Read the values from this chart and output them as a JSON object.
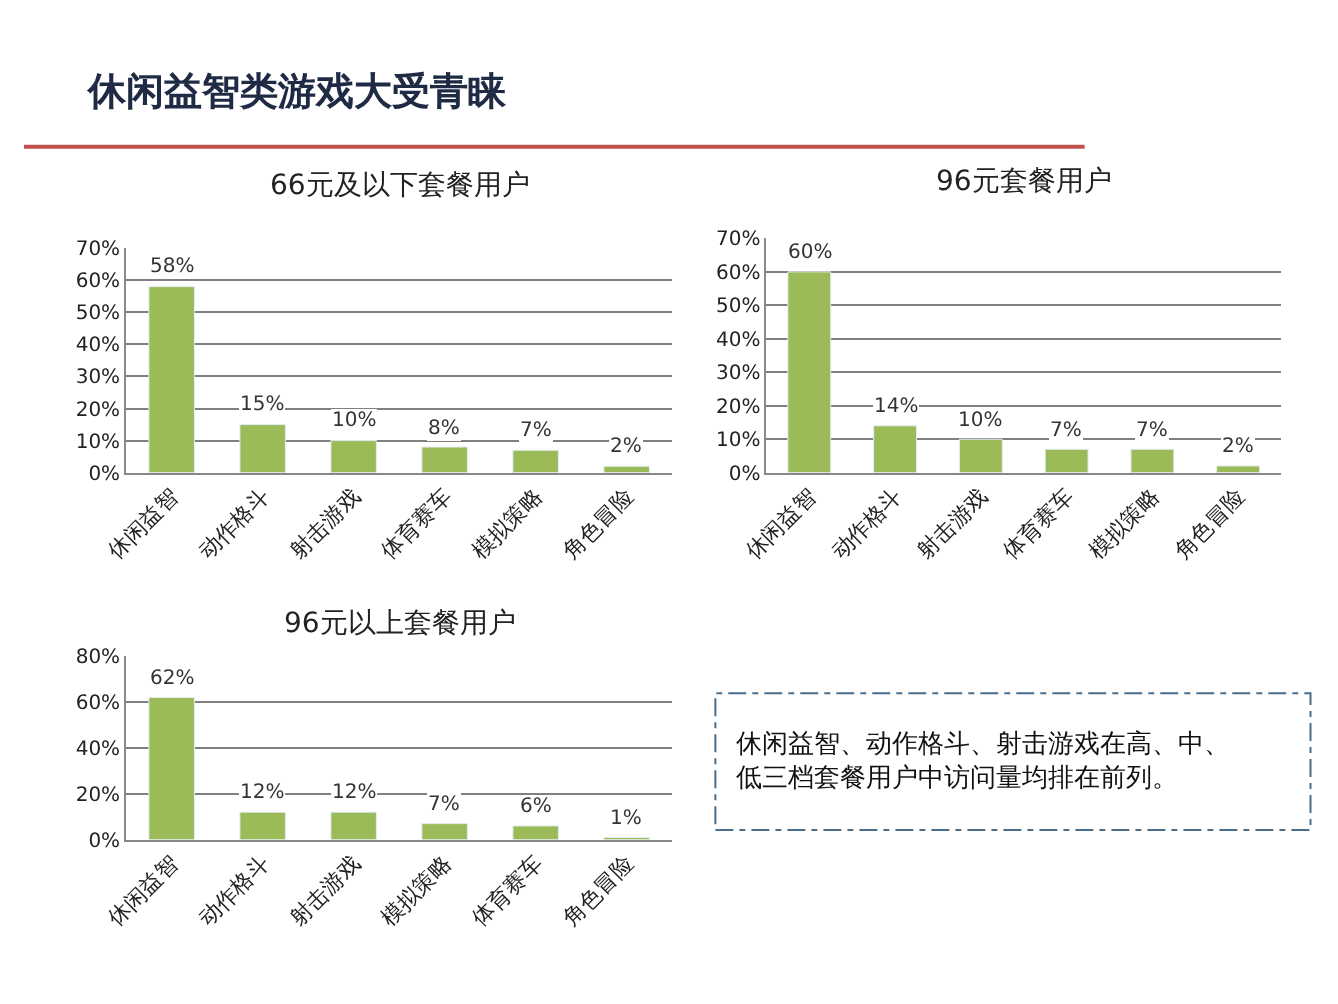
{
  "chart_data": [
    {
      "type": "other",
      "title": "休闲益智类游戏大受青睐"
    },
    {
      "type": "bar",
      "title": "66元及以下套餐用户",
      "categories": [
        "休闲益智",
        "动作格斗",
        "射击游戏",
        "体育赛车",
        "模拟策略",
        "角色冒险"
      ],
      "values": [
        58,
        15,
        10,
        8,
        7,
        2
      ],
      "value_labels": [
        "58%",
        "15%",
        "10%",
        "8%",
        "7%",
        "2%"
      ],
      "color": "#9bbb59",
      "ylim": [
        0,
        70
      ],
      "yticks": [
        {
          "value": 0,
          "label": "0%"
        },
        {
          "value": 10,
          "label": "10%"
        },
        {
          "value": 20,
          "label": "20%"
        },
        {
          "value": 30,
          "label": "30%"
        },
        {
          "value": 40,
          "label": "40%"
        },
        {
          "value": 50,
          "label": "50%"
        },
        {
          "value": 60,
          "label": "60%"
        },
        {
          "value": 70,
          "label": "70%"
        }
      ],
      "grid": "y"
    },
    {
      "type": "bar",
      "title": "96元套餐用户",
      "categories": [
        "休闲益智",
        "动作格斗",
        "射击游戏",
        "体育赛车",
        "模拟策略",
        "角色冒险"
      ],
      "values": [
        60,
        14,
        10,
        7,
        7,
        2
      ],
      "value_labels": [
        "60%",
        "14%",
        "10%",
        "7%",
        "7%",
        "2%"
      ],
      "color": "#9bbb59",
      "ylim": [
        0,
        70
      ],
      "yticks": [
        {
          "value": 0,
          "label": "0%"
        },
        {
          "value": 10,
          "label": "10%"
        },
        {
          "value": 20,
          "label": "20%"
        },
        {
          "value": 30,
          "label": "30%"
        },
        {
          "value": 40,
          "label": "40%"
        },
        {
          "value": 50,
          "label": "50%"
        },
        {
          "value": 60,
          "label": "60%"
        },
        {
          "value": 70,
          "label": "70%"
        }
      ],
      "grid": "y"
    },
    {
      "type": "bar",
      "title": "96元以上套餐用户",
      "categories": [
        "休闲益智",
        "动作格斗",
        "射击游戏",
        "模拟策略",
        "体育赛车",
        "角色冒险"
      ],
      "values": [
        62,
        12,
        12,
        7,
        6,
        1
      ],
      "value_labels": [
        "62%",
        "12%",
        "12%",
        "7%",
        "6%",
        "1%"
      ],
      "color": "#9bbb59",
      "ylim": [
        0,
        80
      ],
      "yticks": [
        {
          "value": 0,
          "label": "0%"
        },
        {
          "value": 20,
          "label": "20%"
        },
        {
          "value": 40,
          "label": "40%"
        },
        {
          "value": 60,
          "label": "60%"
        },
        {
          "value": 80,
          "label": "80%"
        }
      ],
      "grid": "y"
    },
    {
      "type": "other",
      "annotations": [
        "休闲益智、动作格斗、射击游戏在高、中、低三档套餐用户中访问量均排在前列。"
      ]
    }
  ]
}
